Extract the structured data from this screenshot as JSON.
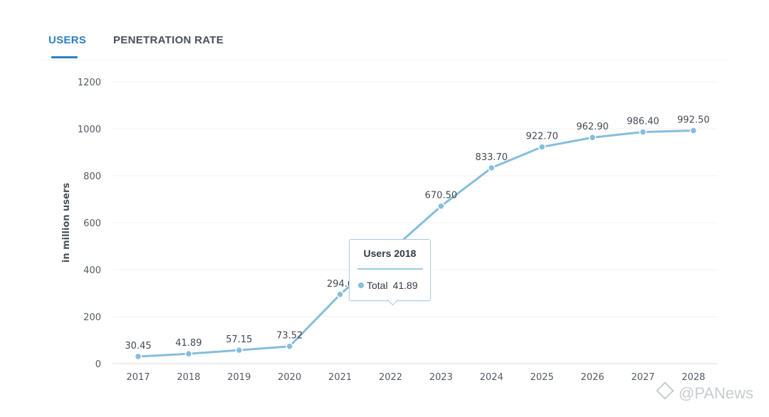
{
  "tabs": [
    {
      "label": "USERS",
      "active": true
    },
    {
      "label": "PENETRATION RATE",
      "active": false
    }
  ],
  "colors": {
    "accent": "#2f7fc1",
    "series": "#86bddc",
    "grid": "#eef1f4"
  },
  "chart_data": {
    "type": "line",
    "title": "",
    "xlabel": "",
    "ylabel": "in million users",
    "ylim": [
      0,
      1200
    ],
    "yticks": [
      0,
      200,
      400,
      600,
      800,
      1000,
      1200
    ],
    "grid": true,
    "categories": [
      "2017",
      "2018",
      "2019",
      "2020",
      "2021",
      "2022",
      "2023",
      "2024",
      "2025",
      "2026",
      "2027",
      "2028"
    ],
    "series": [
      {
        "values": [
          30.45,
          41.89,
          57.15,
          73.52,
          294.6,
          480,
          670.5,
          833.7,
          922.7,
          962.9,
          986.4,
          992.5
        ],
        "labels": [
          "30.45",
          "41.89",
          "57.15",
          "73.52",
          "294.6",
          "",
          "670.50",
          "833.70",
          "922.70",
          "962.90",
          "986.40",
          "992.50"
        ]
      }
    ]
  },
  "tooltip": {
    "title": "Users 2018",
    "series_label": "Total",
    "value": "41.89"
  },
  "watermark": {
    "text": "@PANews"
  }
}
